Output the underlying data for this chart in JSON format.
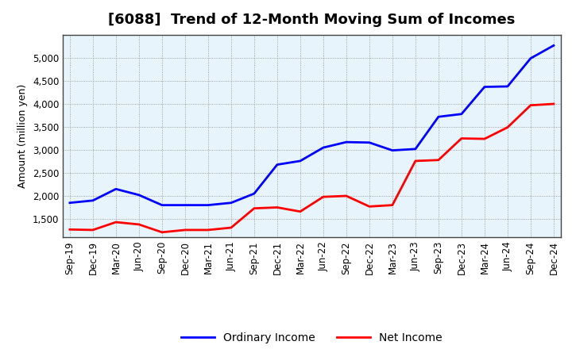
{
  "title": "[6088]  Trend of 12-Month Moving Sum of Incomes",
  "ylabel": "Amount (million yen)",
  "x_labels": [
    "Sep-19",
    "Dec-19",
    "Mar-20",
    "Jun-20",
    "Sep-20",
    "Dec-20",
    "Mar-21",
    "Jun-21",
    "Sep-21",
    "Dec-21",
    "Mar-22",
    "Jun-22",
    "Sep-22",
    "Dec-22",
    "Mar-23",
    "Jun-23",
    "Sep-23",
    "Dec-23",
    "Mar-24",
    "Jun-24",
    "Sep-24",
    "Dec-24"
  ],
  "ordinary_income": [
    1850,
    1900,
    2150,
    2020,
    1800,
    1800,
    1800,
    1850,
    2050,
    2680,
    2760,
    3050,
    3170,
    3160,
    2990,
    3020,
    3720,
    3780,
    4370,
    4380,
    4990,
    5270
  ],
  "net_income": [
    1270,
    1260,
    1430,
    1380,
    1210,
    1260,
    1260,
    1310,
    1730,
    1750,
    1660,
    1980,
    2000,
    1770,
    1800,
    2760,
    2780,
    3250,
    3240,
    3490,
    3970,
    4000
  ],
  "ordinary_color": "#0000FF",
  "net_color": "#FF0000",
  "bg_color": "#FFFFFF",
  "plot_bg_color": "#E8F4FC",
  "grid_color": "#888888",
  "ylim_min": 1100,
  "ylim_max": 5500,
  "yticks": [
    1500,
    2000,
    2500,
    3000,
    3500,
    4000,
    4500,
    5000
  ],
  "legend_ordinary": "Ordinary Income",
  "legend_net": "Net Income",
  "line_width": 2.0,
  "title_fontsize": 13,
  "tick_fontsize": 8.5,
  "ylabel_fontsize": 9
}
